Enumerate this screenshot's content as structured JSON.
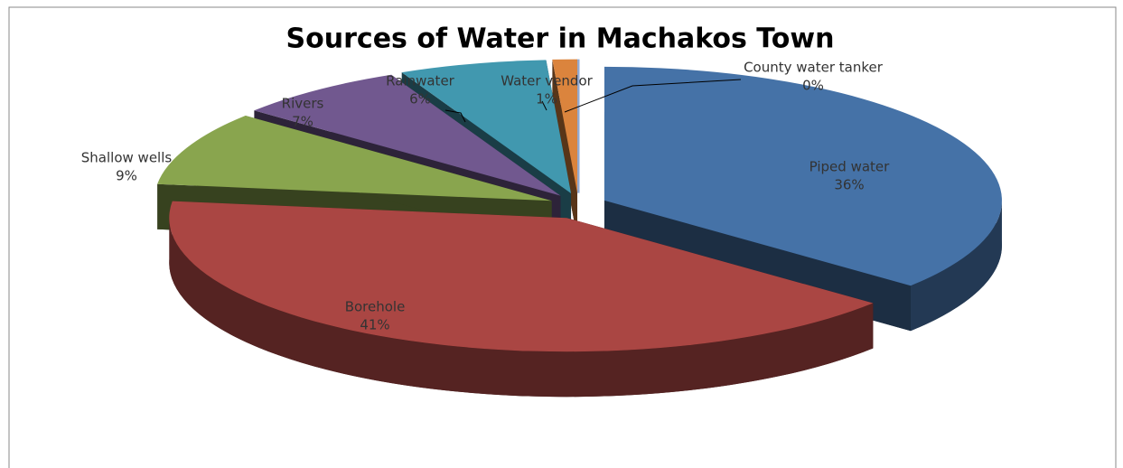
{
  "chart_data": {
    "type": "pie3d",
    "title": "Sources of Water in Machakos Town",
    "categories": [
      "Piped water",
      "Borehole",
      "Shallow wells",
      "Rivers",
      "Rainwater",
      "Water vendor",
      "County water tanker"
    ],
    "values": [
      36,
      41,
      9,
      7,
      6,
      1,
      0
    ],
    "value_labels": [
      "36%",
      "41%",
      "9%",
      "7%",
      "6%",
      "1%",
      "0%"
    ],
    "colors": [
      "#4572a7",
      "#aa4643",
      "#89a54e",
      "#71588f",
      "#4198af",
      "#db843d",
      "#93a9cf"
    ]
  }
}
